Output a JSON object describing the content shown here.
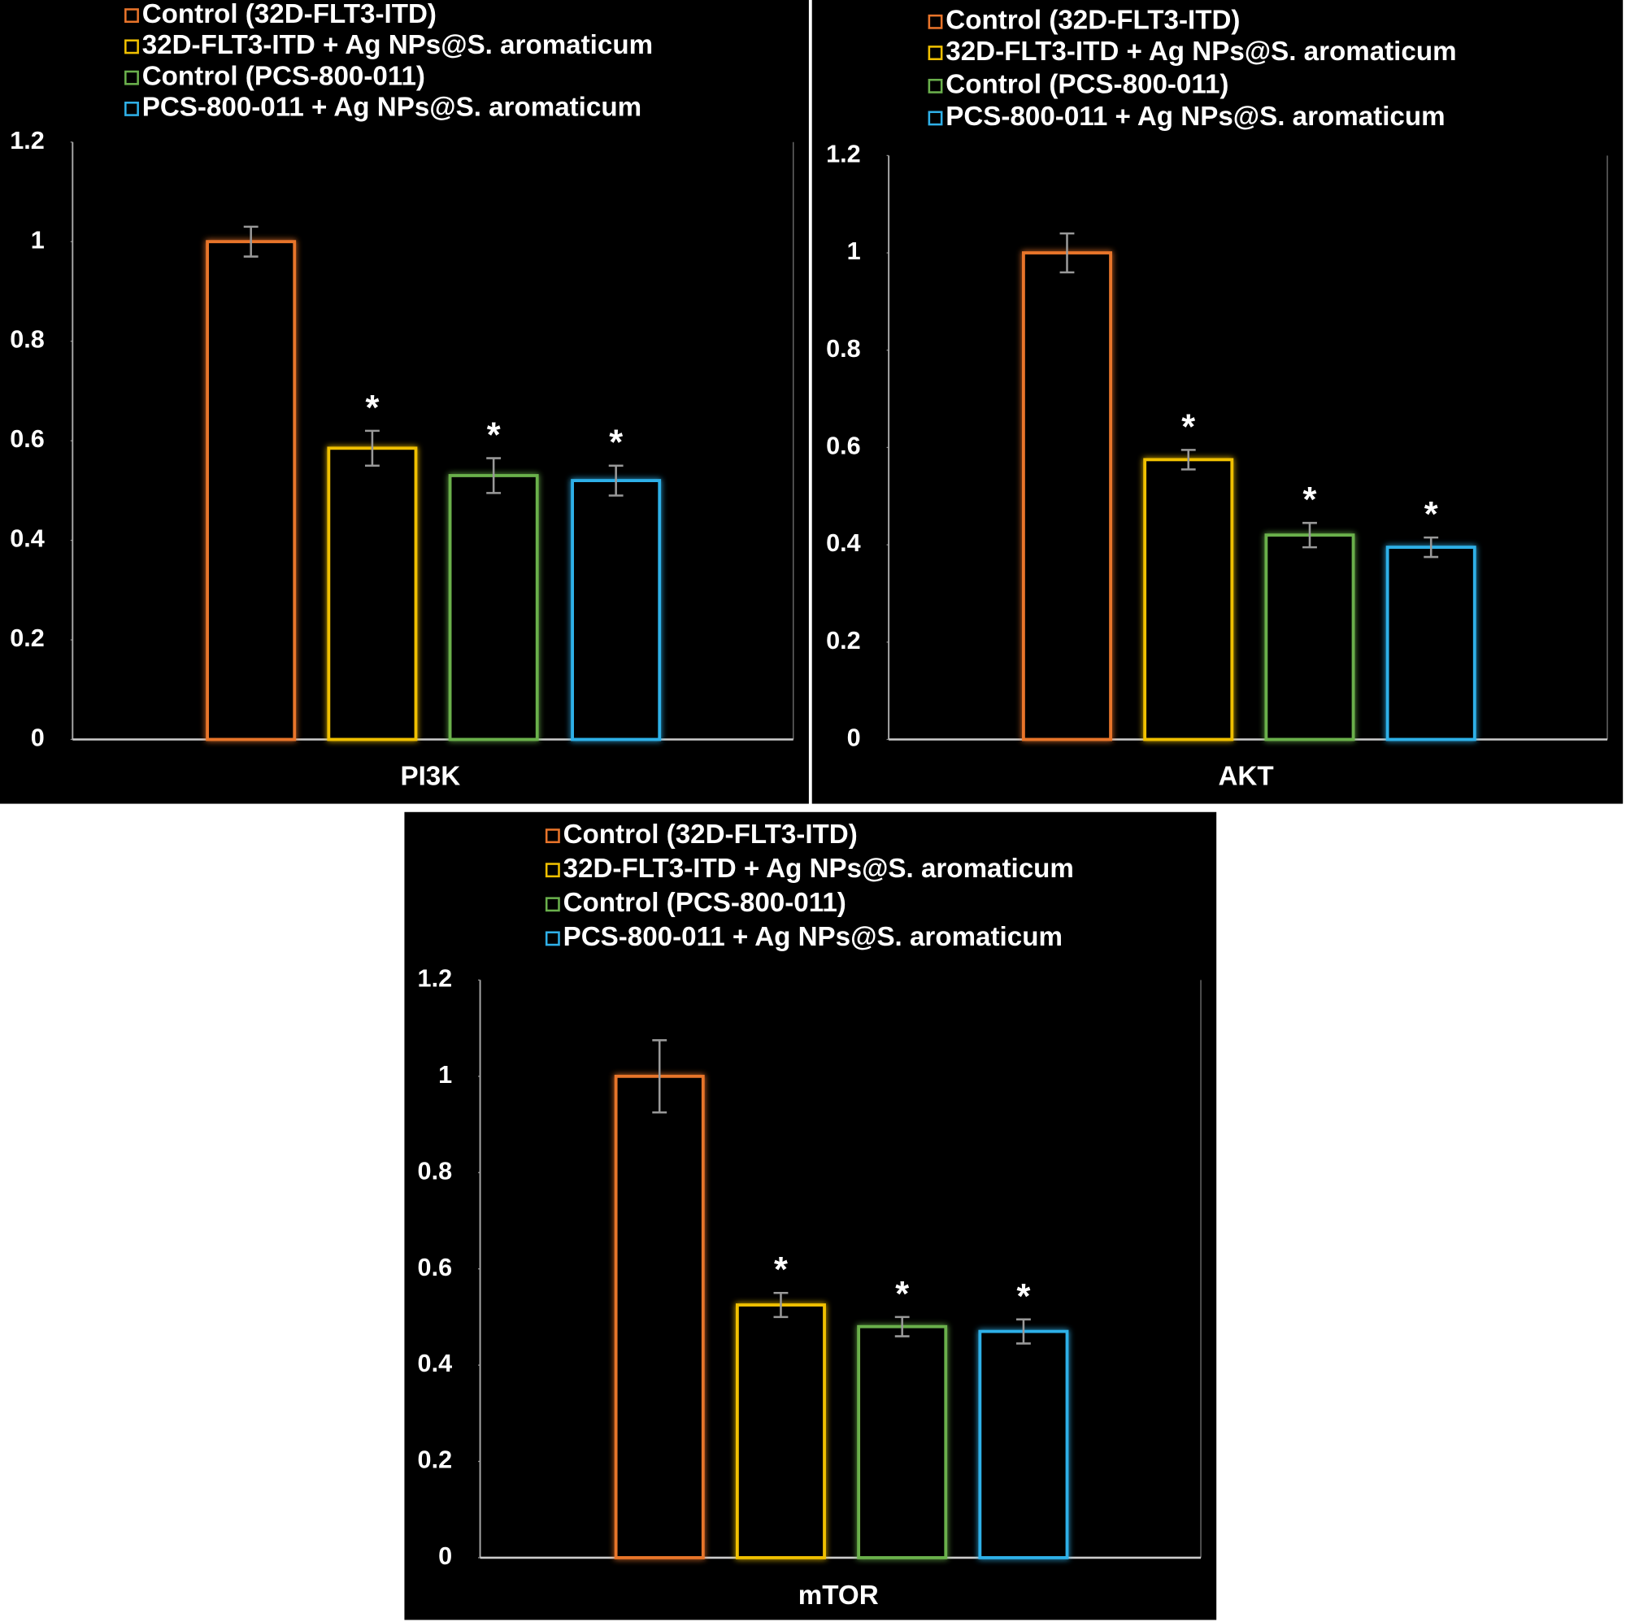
{
  "chart_data": [
    {
      "type": "bar",
      "categories": [
        "PI3K"
      ],
      "ylim": [
        0,
        1.2
      ],
      "yticks": [
        0,
        0.2,
        0.4,
        0.6,
        0.8,
        1,
        1.2
      ],
      "series": [
        {
          "name": "Control (32D-FLT3-ITD)",
          "color": "#e8742a",
          "values": [
            1.0
          ],
          "errors": [
            0.03
          ]
        },
        {
          "name": "32D-FLT3-ITD + Ag NPs@S. aromaticum",
          "color": "#f0c000",
          "values": [
            0.585
          ],
          "errors": [
            0.035
          ],
          "annotation": "*"
        },
        {
          "name": "Control (PCS-800-011)",
          "color": "#6ab04c",
          "values": [
            0.53
          ],
          "errors": [
            0.035
          ],
          "annotation": "*"
        },
        {
          "name": "PCS-800-011 + Ag NPs@S. aromaticum",
          "color": "#2fb0e8",
          "values": [
            0.52
          ],
          "errors": [
            0.03
          ],
          "annotation": "*"
        }
      ]
    },
    {
      "type": "bar",
      "categories": [
        "AKT"
      ],
      "ylim": [
        0,
        1.2
      ],
      "yticks": [
        0,
        0.2,
        0.4,
        0.6,
        0.8,
        1,
        1.2
      ],
      "series": [
        {
          "name": "Control (32D-FLT3-ITD)",
          "color": "#e8742a",
          "values": [
            1.0
          ],
          "errors": [
            0.04
          ]
        },
        {
          "name": "32D-FLT3-ITD + Ag NPs@S. aromaticum",
          "color": "#f0c000",
          "values": [
            0.575
          ],
          "errors": [
            0.02
          ],
          "annotation": "*"
        },
        {
          "name": "Control (PCS-800-011)",
          "color": "#6ab04c",
          "values": [
            0.42
          ],
          "errors": [
            0.025
          ],
          "annotation": "*"
        },
        {
          "name": "PCS-800-011 + Ag NPs@S. aromaticum",
          "color": "#2fb0e8",
          "values": [
            0.395
          ],
          "errors": [
            0.02
          ],
          "annotation": "*"
        }
      ]
    },
    {
      "type": "bar",
      "categories": [
        "mTOR"
      ],
      "ylim": [
        0,
        1.2
      ],
      "yticks": [
        0,
        0.2,
        0.4,
        0.6,
        0.8,
        1,
        1.2
      ],
      "series": [
        {
          "name": "Control (32D-FLT3-ITD)",
          "color": "#e8742a",
          "values": [
            1.0
          ],
          "errors": [
            0.075
          ]
        },
        {
          "name": "32D-FLT3-ITD + Ag NPs@S. aromaticum",
          "color": "#f0c000",
          "values": [
            0.525
          ],
          "errors": [
            0.025
          ],
          "annotation": "*"
        },
        {
          "name": "Control (PCS-800-011)",
          "color": "#6ab04c",
          "values": [
            0.48
          ],
          "errors": [
            0.02
          ],
          "annotation": "*"
        },
        {
          "name": "PCS-800-011 + Ag NPs@S. aromaticum",
          "color": "#2fb0e8",
          "values": [
            0.47
          ],
          "errors": [
            0.025
          ],
          "annotation": "*"
        }
      ]
    }
  ]
}
